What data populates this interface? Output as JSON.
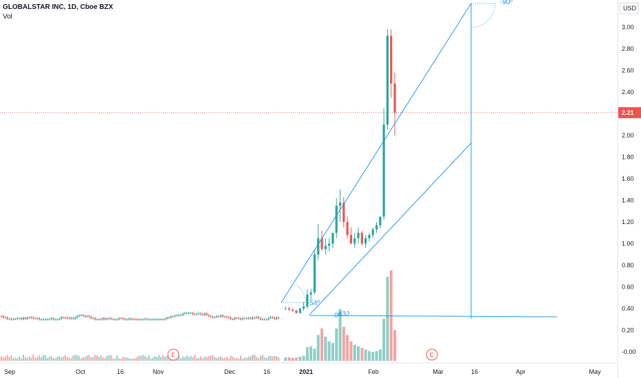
{
  "legend": {
    "symbol": "GLOBALSTAR INC, 1D, Cboe BZX",
    "volume_label": "Vol"
  },
  "price_axis": {
    "currency": "USD",
    "current_price": "2.21",
    "ticks": [
      "3.00",
      "2.80",
      "2.60",
      "2.40",
      "2.20",
      "2.00",
      "1.80",
      "1.60",
      "1.40",
      "1.20",
      "1.00",
      "0.80",
      "0.60",
      "0.40",
      "0.20",
      "-0.00"
    ]
  },
  "time_axis": {
    "labels": [
      {
        "text": "Sep",
        "bold": false
      },
      {
        "text": "Oct",
        "bold": false
      },
      {
        "text": "16",
        "bold": false
      },
      {
        "text": "Nov",
        "bold": false
      },
      {
        "text": "Dec",
        "bold": false
      },
      {
        "text": "16",
        "bold": false
      },
      {
        "text": "2021",
        "bold": true
      },
      {
        "text": "Feb",
        "bold": false
      },
      {
        "text": "Mar",
        "bold": false
      },
      {
        "text": "16",
        "bold": false
      },
      {
        "text": "Apr",
        "bold": false
      },
      {
        "text": "May",
        "bold": false
      }
    ]
  },
  "annotations": {
    "angle_top": "-90º",
    "angle_left": "54º",
    "angle_low": "0º",
    "hline_value": "432",
    "earnings_marker": "E"
  },
  "colors": {
    "up": "#26a69a",
    "down": "#ef5350",
    "up_volume": "#8fcdc5",
    "down_volume": "#f4a4a2",
    "drawing": "#2196f3",
    "price_tag": "#ef5350",
    "grid_text": "#131722"
  },
  "chart_data": {
    "type": "candlestick",
    "title": "GLOBALSTAR INC, 1D, Cboe BZX",
    "y_unit": "USD",
    "ylim": [
      -0.05,
      3.2
    ],
    "last_price": 2.21,
    "grid": false,
    "series": [
      {
        "name": "GLOBALSTAR INC",
        "x": [
          "2020-12-28",
          "2020-12-29",
          "2020-12-30",
          "2020-12-31",
          "2021-01-04",
          "2021-01-05",
          "2021-01-06",
          "2021-01-07",
          "2021-01-08",
          "2021-01-11",
          "2021-01-12",
          "2021-01-13",
          "2021-01-14",
          "2021-01-15",
          "2021-01-19",
          "2021-01-20",
          "2021-01-21",
          "2021-01-22",
          "2021-01-25",
          "2021-01-26",
          "2021-01-27",
          "2021-01-28",
          "2021-01-29",
          "2021-02-01",
          "2021-02-02",
          "2021-02-03",
          "2021-02-04",
          "2021-02-05",
          "2021-02-08",
          "2021-02-09",
          "2021-02-10"
        ],
        "open": [
          0.4,
          0.4,
          0.39,
          0.38,
          0.36,
          0.4,
          0.42,
          0.53,
          0.55,
          0.9,
          1.05,
          0.95,
          0.98,
          1.0,
          1.1,
          1.35,
          1.38,
          1.2,
          1.08,
          1.0,
          1.05,
          1.1,
          1.0,
          1.05,
          1.08,
          1.13,
          1.17,
          1.25,
          2.1,
          2.92,
          2.48
        ],
        "high": [
          0.42,
          0.42,
          0.4,
          0.39,
          0.41,
          0.46,
          0.58,
          0.58,
          0.95,
          1.18,
          1.12,
          1.05,
          1.05,
          1.1,
          1.42,
          1.5,
          1.43,
          1.25,
          1.15,
          1.1,
          1.15,
          1.12,
          1.08,
          1.1,
          1.15,
          1.2,
          1.25,
          2.25,
          2.98,
          2.98,
          2.58
        ],
        "low": [
          0.39,
          0.38,
          0.37,
          0.35,
          0.35,
          0.38,
          0.4,
          0.48,
          0.53,
          0.85,
          0.93,
          0.9,
          0.93,
          0.96,
          1.05,
          1.2,
          1.15,
          1.05,
          1.0,
          0.96,
          1.0,
          0.98,
          0.96,
          1.02,
          1.05,
          1.1,
          1.14,
          1.22,
          2.05,
          2.35,
          2.0
        ],
        "close": [
          0.4,
          0.39,
          0.38,
          0.36,
          0.4,
          0.42,
          0.53,
          0.55,
          0.9,
          1.05,
          0.95,
          0.98,
          1.0,
          1.1,
          1.35,
          1.38,
          1.2,
          1.08,
          1.0,
          1.05,
          1.1,
          1.0,
          1.05,
          1.08,
          1.13,
          1.17,
          1.25,
          2.1,
          2.92,
          2.48,
          2.21
        ]
      }
    ],
    "flat_period": {
      "from": "2020-09-01",
      "to": "2020-12-24",
      "price_min": 0.3,
      "price_max": 0.36
    },
    "volume": {
      "label": "Vol",
      "values": [
        20,
        22,
        18,
        20,
        25,
        30,
        85,
        90,
        75,
        160,
        200,
        150,
        120,
        110,
        200,
        320,
        210,
        160,
        120,
        100,
        90,
        80,
        70,
        60,
        55,
        60,
        70,
        260,
        520,
        560,
        190
      ]
    }
  }
}
